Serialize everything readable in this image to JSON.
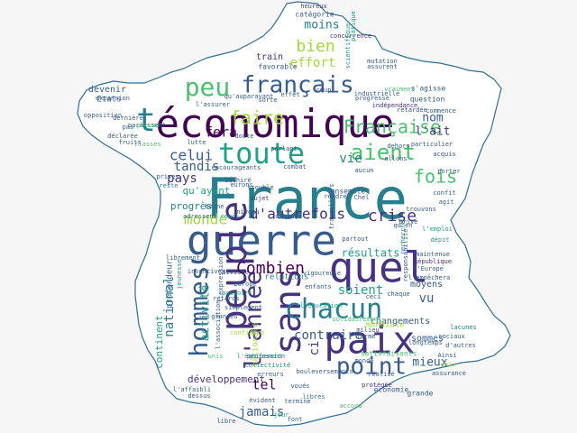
{
  "palette": {
    "background": "#f6f6f6",
    "map_fill": "#ffffff",
    "map_outline": "#2f6f96",
    "word_colors": [
      "#440154",
      "#46327e",
      "#365c8d",
      "#277f8e",
      "#1fa187",
      "#4ac16d",
      "#a0da39",
      "#fde725"
    ]
  },
  "shape": "map of France",
  "words": [
    {
      "t": "France",
      "c": 3,
      "r": 0
    },
    {
      "t": "économique",
      "c": 0,
      "r": 0
    },
    {
      "t": "guerre",
      "c": 2,
      "r": 0
    },
    {
      "t": "quel",
      "c": 1,
      "r": 0
    },
    {
      "t": "peuple",
      "c": 1,
      "r": 1
    },
    {
      "t": "paix",
      "c": 1,
      "r": 0
    },
    {
      "t": "sans",
      "c": 1,
      "r": 1
    },
    {
      "t": "toute",
      "c": 4,
      "r": 0
    },
    {
      "t": "chacun",
      "c": 3,
      "r": 0
    },
    {
      "t": "hommes",
      "c": 2,
      "r": 1
    },
    {
      "t": "point",
      "c": 2,
      "r": 0
    },
    {
      "t": "l'année",
      "c": 1,
      "r": 1
    },
    {
      "t": "peu",
      "c": 5,
      "r": 0
    },
    {
      "t": "français",
      "c": 2,
      "r": 0
    },
    {
      "t": "t",
      "c": 3,
      "r": 0
    },
    {
      "t": "aient",
      "c": 5,
      "r": 0
    },
    {
      "t": "faire",
      "c": 6,
      "r": 0
    },
    {
      "t": "Française",
      "c": 5,
      "r": 0
    },
    {
      "t": "fois",
      "c": 5,
      "r": 0
    },
    {
      "t": "Combien",
      "c": 0,
      "r": 0
    },
    {
      "t": "d'autrefois",
      "c": 1,
      "r": 0
    },
    {
      "t": "crise",
      "c": 1,
      "r": 0
    },
    {
      "t": "monde",
      "c": 6,
      "r": 0
    },
    {
      "t": "celui",
      "c": 2,
      "r": 0
    },
    {
      "t": "fera",
      "c": 0,
      "r": 0
    },
    {
      "t": "tandis",
      "c": 2,
      "r": 0
    },
    {
      "t": "pays",
      "c": 1,
      "r": 0
    },
    {
      "t": "bien",
      "c": 6,
      "r": 0
    },
    {
      "t": "effort",
      "c": 6,
      "r": 0
    },
    {
      "t": "nom",
      "c": 2,
      "r": 0
    },
    {
      "t": "l'ait",
      "c": 1,
      "r": 0
    },
    {
      "t": "vie",
      "c": 3,
      "r": 0
    },
    {
      "t": "national",
      "c": 3,
      "r": 1
    },
    {
      "t": "soient",
      "c": 4,
      "r": 0
    },
    {
      "t": "résultats",
      "c": 4,
      "r": 0
    },
    {
      "t": "contraire",
      "c": 2,
      "r": 0
    },
    {
      "t": "vu",
      "c": 2,
      "r": 0
    },
    {
      "t": "ci",
      "c": 1,
      "r": 1
    },
    {
      "t": "mieux",
      "c": 2,
      "r": 0
    },
    {
      "t": "tel",
      "c": 0,
      "r": 0
    },
    {
      "t": "jamais",
      "c": 2,
      "r": 0
    },
    {
      "t": "moins",
      "c": 3,
      "r": 0
    },
    {
      "t": "activité",
      "c": 4,
      "r": 1
    },
    {
      "t": "progrès",
      "c": 3,
      "r": 0
    },
    {
      "t": "qu'ayant",
      "c": 4,
      "r": 0
    },
    {
      "t": "continent",
      "c": 4,
      "r": 1
    },
    {
      "t": "développement",
      "c": 1,
      "r": 0
    },
    {
      "t": "changements",
      "c": 2,
      "r": 0
    },
    {
      "t": "sommes",
      "c": 2,
      "r": 0
    },
    {
      "t": "moyens",
      "c": 2,
      "r": 0
    },
    {
      "t": "relations",
      "c": 3,
      "r": 0
    },
    {
      "t": "profondeur",
      "c": 2,
      "r": 1
    },
    {
      "t": "nationale",
      "c": 6,
      "r": 1
    },
    {
      "t": "devenir",
      "c": 2,
      "r": 0
    },
    {
      "t": "Etats",
      "c": 2,
      "r": 0
    },
    {
      "t": "train",
      "c": 1,
      "r": 0
    },
    {
      "t": "favorable",
      "c": 2,
      "r": 0
    },
    {
      "t": "catégorie",
      "c": 2,
      "r": 0
    },
    {
      "t": "heureux",
      "c": 1,
      "r": 0
    },
    {
      "t": "concurrence",
      "c": 1,
      "r": 0
    },
    {
      "t": "mutation",
      "c": 2,
      "r": 0
    },
    {
      "t": "industrielle",
      "c": 2,
      "r": 0
    },
    {
      "t": "indépendance",
      "c": 1,
      "r": 0
    },
    {
      "t": "question",
      "c": 2,
      "r": 0
    },
    {
      "t": "s'agisse",
      "c": 2,
      "r": 0
    },
    {
      "t": "l'Europe",
      "c": 2,
      "r": 0
    },
    {
      "t": "République",
      "c": 1,
      "r": 0
    },
    {
      "t": "maintenue",
      "c": 2,
      "r": 0
    },
    {
      "t": "dépit",
      "c": 4,
      "r": 0
    },
    {
      "t": "l'emploi",
      "c": 4,
      "r": 0
    },
    {
      "t": "privé",
      "c": 2,
      "r": 0
    },
    {
      "t": "trouvons",
      "c": 2,
      "r": 0
    },
    {
      "t": "lacunes",
      "c": 3,
      "r": 0
    },
    {
      "t": "sociaux",
      "c": 2,
      "r": 0
    },
    {
      "t": "d'autres",
      "c": 2,
      "r": 0
    },
    {
      "t": "mondiale",
      "c": 6,
      "r": 0
    },
    {
      "t": "satisfaisants",
      "c": 5,
      "r": 0
    },
    {
      "t": "grande",
      "c": 2,
      "r": 0
    },
    {
      "t": "protégée",
      "c": 1,
      "r": 0
    },
    {
      "t": "bouleversements",
      "c": 2,
      "r": 0
    },
    {
      "t": "collectivité",
      "c": 3,
      "r": 0
    },
    {
      "t": "profession",
      "c": 2,
      "r": 0
    },
    {
      "t": "milieu",
      "c": 2,
      "r": 0
    },
    {
      "t": "confiance",
      "c": 6,
      "r": 0
    },
    {
      "t": "simplement",
      "c": 2,
      "r": 0
    },
    {
      "t": "retards",
      "c": 2,
      "r": 0
    },
    {
      "t": "l'expression",
      "c": 2,
      "r": 1
    },
    {
      "t": "pouvoirs",
      "c": 4,
      "r": 0
    },
    {
      "t": "vigoureuse",
      "c": 2,
      "r": 0
    },
    {
      "t": "enfants",
      "c": 2,
      "r": 0
    },
    {
      "t": "partout",
      "c": 2,
      "r": 0
    },
    {
      "t": "déchiré",
      "c": 2,
      "r": 0
    },
    {
      "t": "sujet",
      "c": 1,
      "r": 0
    },
    {
      "t": "niveau",
      "c": 2,
      "r": 0
    },
    {
      "t": "trouble",
      "c": 2,
      "r": 0
    },
    {
      "t": "encourageants",
      "c": 2,
      "r": 0
    },
    {
      "t": "combat",
      "c": 2,
      "r": 0
    },
    {
      "t": "dehors",
      "c": 2,
      "r": 0
    },
    {
      "t": "particulier",
      "c": 2,
      "r": 0
    },
    {
      "t": "acquis",
      "c": 2,
      "r": 0
    },
    {
      "t": "porter",
      "c": 2,
      "r": 0
    },
    {
      "t": "classes",
      "c": 5,
      "r": 0
    },
    {
      "t": "fruits",
      "c": 2,
      "r": 0
    },
    {
      "t": "expansion",
      "c": 2,
      "r": 0
    },
    {
      "t": "opposition",
      "c": 2,
      "r": 0
    },
    {
      "t": "paraissent",
      "c": 2,
      "r": 0
    },
    {
      "t": "l'assurer",
      "c": 2,
      "r": 0
    },
    {
      "t": "lutte",
      "c": 2,
      "r": 0
    },
    {
      "t": "bonne",
      "c": 2,
      "r": 0
    },
    {
      "t": "reste",
      "c": 3,
      "r": 0
    },
    {
      "t": "prises",
      "c": 2,
      "r": 0
    },
    {
      "t": "divisée",
      "c": 2,
      "r": 0
    },
    {
      "t": "inventives",
      "c": 2,
      "r": 0
    },
    {
      "t": "ensemble",
      "c": 2,
      "r": 0
    },
    {
      "t": "rendre",
      "c": 2,
      "r": 0
    },
    {
      "t": "travailleurs",
      "c": 2,
      "r": 1
    },
    {
      "t": "cours",
      "c": 4,
      "r": 0
    },
    {
      "t": "eurons",
      "c": 2,
      "r": 0
    },
    {
      "t": "recherche",
      "c": 4,
      "r": 1
    },
    {
      "t": "scientifique",
      "c": 4,
      "r": 1
    },
    {
      "t": "pratique",
      "c": 4,
      "r": 1
    },
    {
      "t": "coup",
      "c": 2,
      "r": 0
    },
    {
      "t": "effet",
      "c": 2,
      "r": 0
    },
    {
      "t": "assurent",
      "c": 2,
      "r": 0
    },
    {
      "t": "vraiment",
      "c": 5,
      "r": 0
    },
    {
      "t": "retardée",
      "c": 2,
      "r": 0
    },
    {
      "t": "commence",
      "c": 2,
      "r": 0
    },
    {
      "t": "allons",
      "c": 2,
      "r": 0
    },
    {
      "t": "aucun",
      "c": 2,
      "r": 0
    },
    {
      "t": "parlant",
      "c": 2,
      "r": 0
    },
    {
      "t": "adressent",
      "c": 2,
      "r": 0
    },
    {
      "t": "qu'auparavant",
      "c": 2,
      "r": 0
    },
    {
      "t": "l'équipement",
      "c": 4,
      "r": 0
    },
    {
      "t": "l'éducation",
      "c": 4,
      "r": 0
    },
    {
      "t": "solidairement",
      "c": 5,
      "r": 0
    },
    {
      "t": "ceci",
      "c": 2,
      "r": 0
    },
    {
      "t": "l'empêchera",
      "c": 2,
      "r": 0
    },
    {
      "t": "Ainsi",
      "c": 2,
      "r": 0
    },
    {
      "t": "longtemps",
      "c": 2,
      "r": 0
    },
    {
      "t": "chaque",
      "c": 2,
      "r": 0
    },
    {
      "t": "forme",
      "c": 2,
      "r": 0
    },
    {
      "t": "réalisé",
      "c": 2,
      "r": 0
    },
    {
      "t": "libres",
      "c": 3,
      "r": 0
    },
    {
      "t": "voués",
      "c": 2,
      "r": 0
    },
    {
      "t": "erreurs",
      "c": 2,
      "r": 0
    },
    {
      "t": "évident",
      "c": 2,
      "r": 0
    },
    {
      "t": "termine",
      "c": 2,
      "r": 0
    },
    {
      "t": "l'affaibli",
      "c": 2,
      "r": 0
    },
    {
      "t": "dessus",
      "c": 2,
      "r": 0
    },
    {
      "t": "font",
      "c": 2,
      "r": 0
    },
    {
      "t": "jour",
      "c": 4,
      "r": 0
    },
    {
      "t": "économie",
      "c": 2,
      "r": 0
    },
    {
      "t": "librement",
      "c": 2,
      "r": 0
    },
    {
      "t": "jeunesse",
      "c": 4,
      "r": 1
    },
    {
      "t": "grandes",
      "c": 2,
      "r": 0
    },
    {
      "t": "l'association",
      "c": 2,
      "r": 1
    },
    {
      "t": "pleine",
      "c": 5,
      "r": 0
    },
    {
      "t": "déclarée",
      "c": 2,
      "r": 0
    },
    {
      "t": "doute",
      "c": 2,
      "r": 0
    },
    {
      "t": "assurance",
      "c": 2,
      "r": 0
    },
    {
      "t": "unis",
      "c": 6,
      "r": 0
    },
    {
      "t": "Chel",
      "c": 2,
      "r": 0
    },
    {
      "t": "qu'en",
      "c": 2,
      "r": 0
    },
    {
      "t": "monde",
      "c": 2,
      "r": 0
    },
    {
      "t": "Europe",
      "c": 2,
      "r": 0
    },
    {
      "t": "progresse",
      "c": 2,
      "r": 0
    },
    {
      "t": "unis",
      "c": 5,
      "r": 0
    },
    {
      "t": "pas",
      "c": 2,
      "r": 0
    },
    {
      "t": "dernière",
      "c": 2,
      "r": 0
    },
    {
      "t": "responsabilité",
      "c": 2,
      "r": 1
    },
    {
      "t": "confit",
      "c": 2,
      "r": 0
    },
    {
      "t": "agit",
      "c": 2,
      "r": 0
    },
    {
      "t": "accord",
      "c": 5,
      "r": 0
    },
    {
      "t": "libre",
      "c": 2,
      "r": 0
    },
    {
      "t": "sorte",
      "c": 2,
      "r": 0
    },
    {
      "t": "autre",
      "c": 2,
      "r": 0
    },
    {
      "t": "tous",
      "c": 2,
      "r": 0
    },
    {
      "t": "d'ordre",
      "c": 2,
      "r": 0
    }
  ]
}
